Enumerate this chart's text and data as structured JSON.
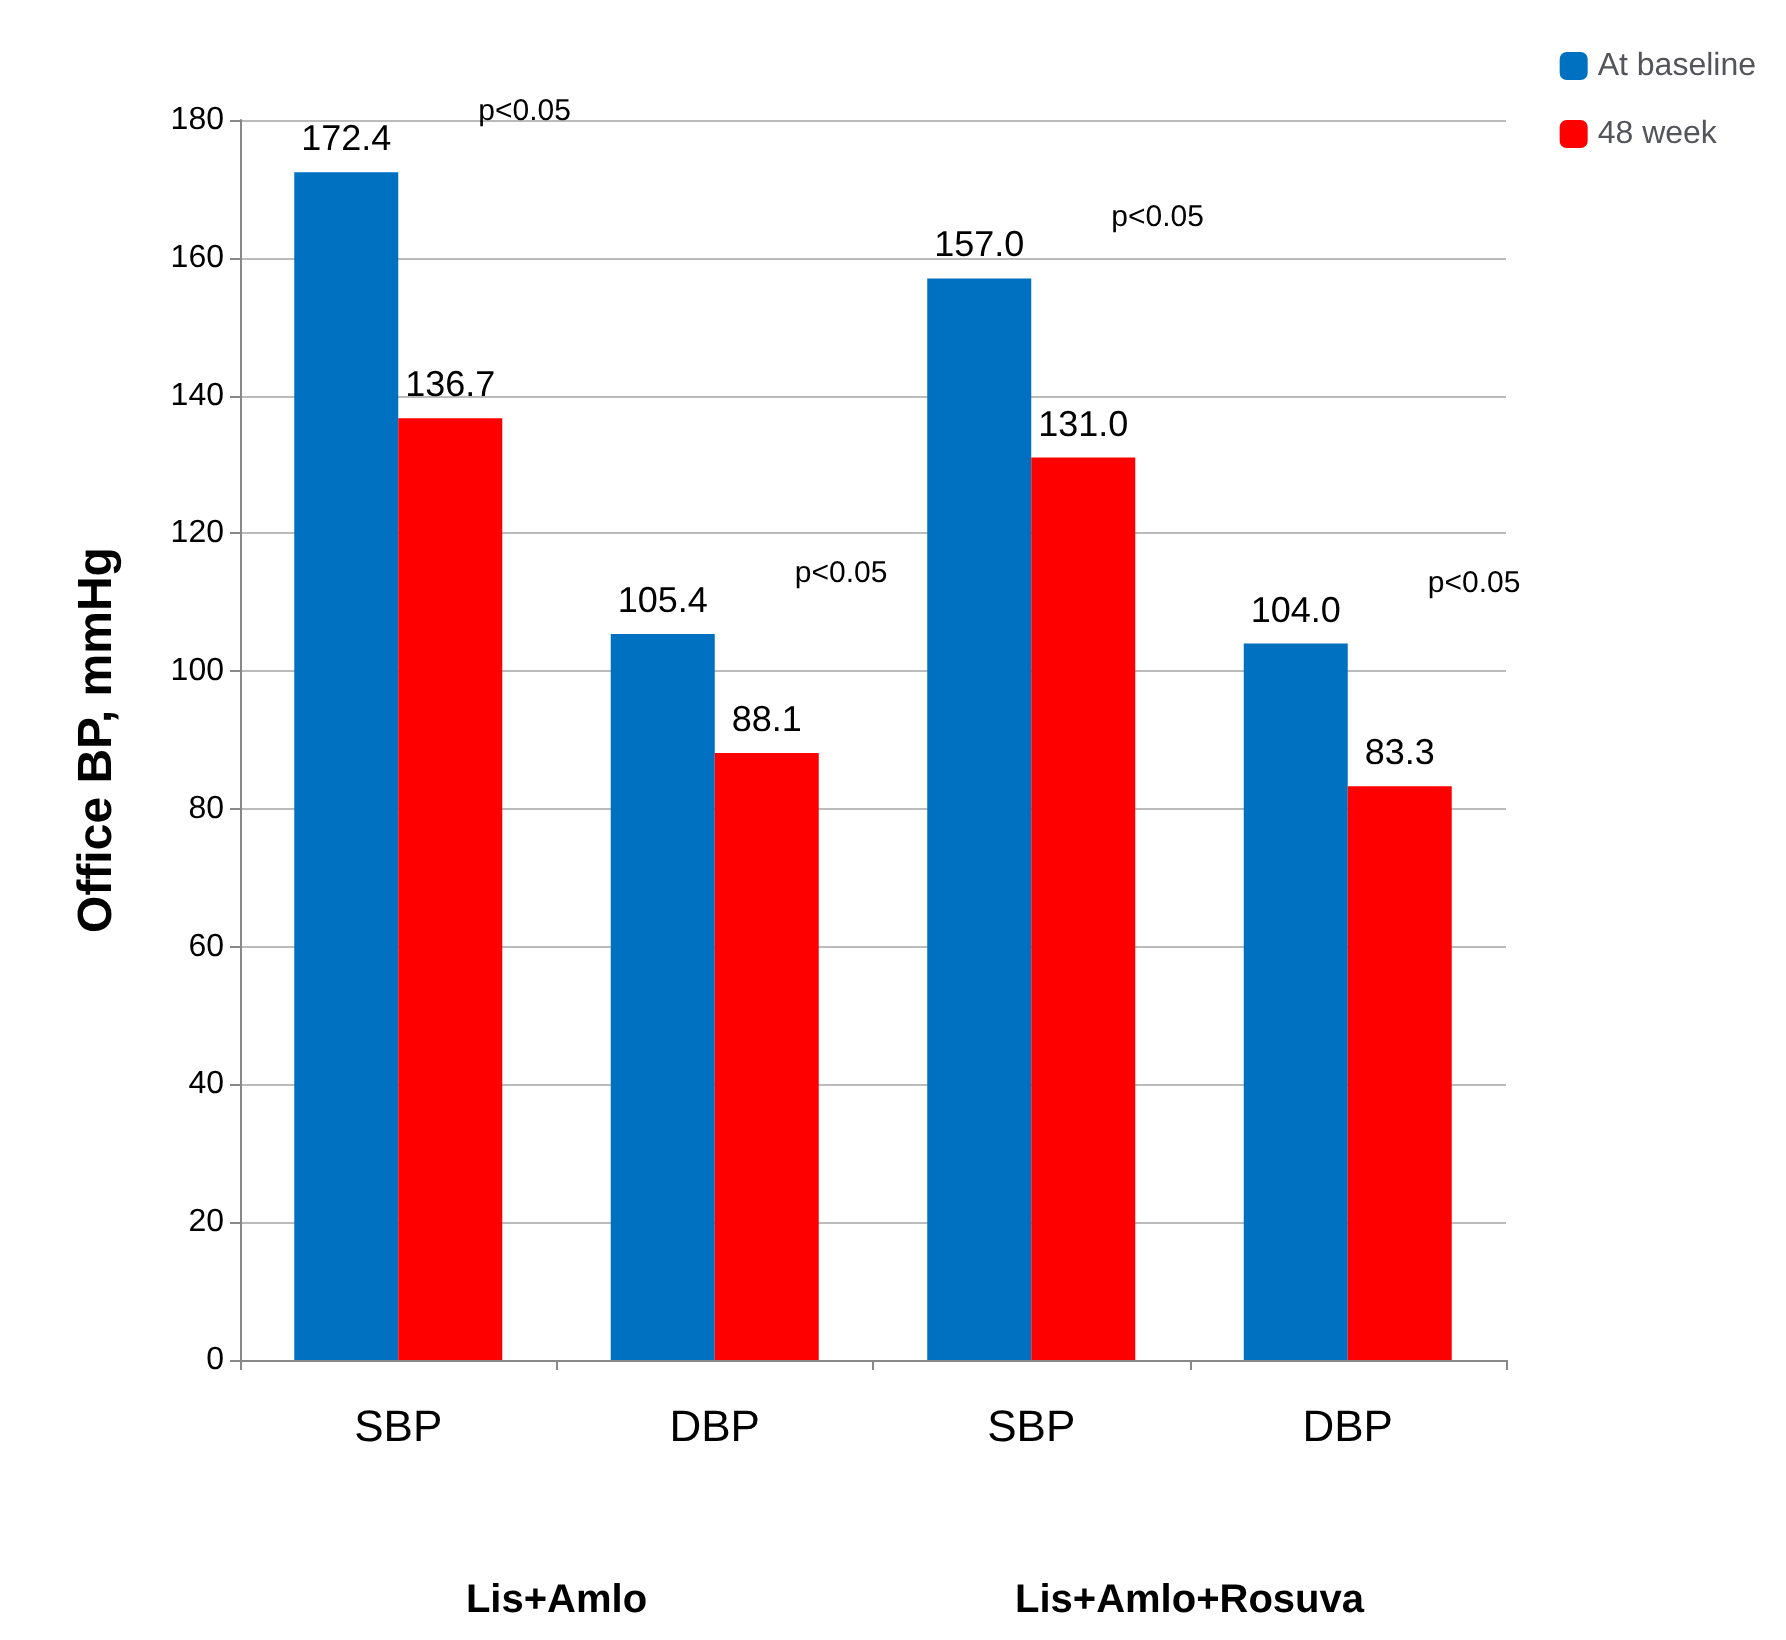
{
  "chart_data": {
    "type": "bar",
    "ylabel": "Office BP, mmHg",
    "categories": [
      "SBP",
      "DBP",
      "SBP",
      "DBP"
    ],
    "series": [
      {
        "name": "At baseline",
        "color": "#0070c0",
        "values": [
          172.4,
          105.4,
          157.0,
          104.0
        ],
        "value_labels": [
          "172.4",
          "105.4",
          "157.0",
          "104.0"
        ]
      },
      {
        "name": "48 week",
        "color": "#ff0000",
        "values": [
          136.7,
          88.1,
          131.0,
          83.3
        ],
        "value_labels": [
          "136.7",
          "88.1",
          "131.0",
          "83.3"
        ]
      }
    ],
    "ylim": [
      0,
      180
    ],
    "yticks": [
      0,
      20,
      40,
      60,
      80,
      100,
      120,
      140,
      160,
      180
    ],
    "grid": "y",
    "legend": "top right",
    "annotations": [
      "p<0.05",
      "p<0.05",
      "p<0.05",
      "p<0.05",
      "Lis+Amlo",
      "Lis+Amlo+Rosuva"
    ]
  }
}
